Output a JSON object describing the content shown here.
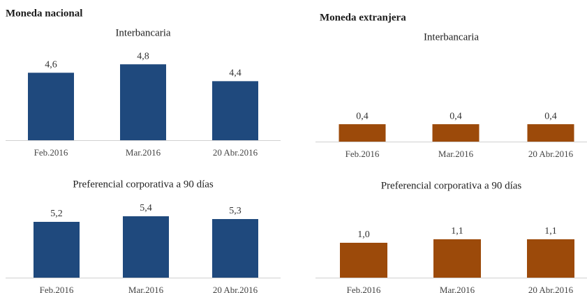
{
  "headings": [
    "Moneda nacional",
    "Moneda extranjera"
  ],
  "chart_data": [
    {
      "type": "bar",
      "title": "Interbancaria",
      "categories": [
        "Feb.2016",
        "Mar.2016",
        "20 Abr.2016"
      ],
      "values": [
        4.6,
        4.8,
        4.4
      ],
      "value_labels": [
        "4,6",
        "4,8",
        "4,4"
      ],
      "color": "#1f497d",
      "ylim": [
        3,
        5.2
      ]
    },
    {
      "type": "bar",
      "title": "Preferencial corporativa a 90 días",
      "categories": [
        "Feb.2016",
        "Mar.2016",
        "20 Abr.2016"
      ],
      "values": [
        5.2,
        5.4,
        5.3
      ],
      "value_labels": [
        "5,2",
        "5,4",
        "5,3"
      ],
      "color": "#1f497d",
      "ylim": [
        3.2,
        5.8
      ]
    },
    {
      "type": "bar",
      "title": "Interbancaria",
      "categories": [
        "Feb.2016",
        "Mar.2016",
        "20 Abr.2016"
      ],
      "values": [
        0.4,
        0.4,
        0.4
      ],
      "value_labels": [
        "0,4",
        "0,4",
        "0,4"
      ],
      "color": "#9c4a0a",
      "ylim": [
        0,
        2.1
      ]
    },
    {
      "type": "bar",
      "title": "Preferencial corporativa a 90 días",
      "categories": [
        "Feb.2016",
        "Mar.2016",
        "20 Abr.2016"
      ],
      "values": [
        1.0,
        1.1,
        1.1
      ],
      "value_labels": [
        "1,0",
        "1,1",
        "1,1"
      ],
      "color": "#9c4a0a",
      "ylim": [
        0,
        2
      ]
    }
  ]
}
